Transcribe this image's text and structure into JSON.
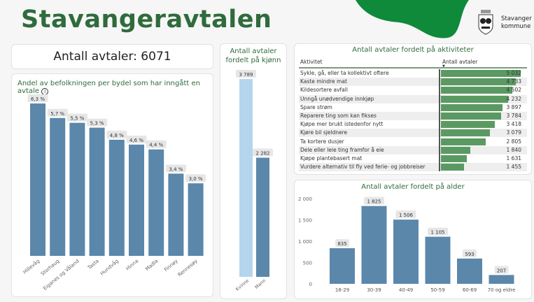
{
  "header": {
    "title": "Stavangeravtalen",
    "logo_text": [
      "Stavanger",
      "kommune"
    ]
  },
  "colors": {
    "brand_green": "#0e8a3a",
    "title_green": "#2f6b3c",
    "bar_blue": "#5b87ab",
    "bar_light_blue": "#b3d6ee",
    "bar_green": "#5a9a62"
  },
  "total": {
    "label": "Antall avtaler: 6071"
  },
  "chart_data": [
    {
      "type": "bar",
      "title": "Andel av befolkningen per bydel som har inngått en avtale",
      "categories": [
        "Hillevåg",
        "Storhaug",
        "Eiganes og Våland",
        "Tasta",
        "Hundvåg",
        "Hinna",
        "Madla",
        "Finnøy",
        "Rennesøy"
      ],
      "values": [
        6.3,
        5.7,
        5.5,
        5.3,
        4.8,
        4.6,
        4.4,
        3.4,
        3.0
      ],
      "data_labels": [
        "6,3 %",
        "5,7 %",
        "5,5 %",
        "5,3 %",
        "4,8 %",
        "4,6 %",
        "4,4 %",
        "3,4 %",
        "3,0 %"
      ]
    },
    {
      "type": "bar",
      "title": "Antall avtaler fordelt på kjønn",
      "categories": [
        "Kvinne",
        "Mann"
      ],
      "values": [
        3789,
        2282
      ],
      "data_labels": [
        "3 789",
        "2 282"
      ]
    },
    {
      "type": "table",
      "title": "Antall avtaler fordelt på aktiviteter",
      "columns": [
        "Aktivitet",
        "Antall avtaler"
      ],
      "rows": [
        [
          "Sykle, gå, eller ta kollektivt oftere",
          5032,
          "5 032"
        ],
        [
          "Kaste mindre mat",
          4733,
          "4 733"
        ],
        [
          "Kildesortere avfall",
          4502,
          "4 502"
        ],
        [
          "Unngå unødvendige innkjøp",
          4232,
          "4 232"
        ],
        [
          "Spare strøm",
          3897,
          "3 897"
        ],
        [
          "Reparere ting som kan fikses",
          3784,
          "3 784"
        ],
        [
          "Kjøpe mer brukt istedenfor nytt",
          3418,
          "3 418"
        ],
        [
          "Kjøre bil sjeldnere",
          3079,
          "3 079"
        ],
        [
          "Ta kortere dusjer",
          2805,
          "2 805"
        ],
        [
          "Dele eller leie ting framfor å eie",
          1840,
          "1 840"
        ],
        [
          "Kjøpe plantebasert mat",
          1631,
          "1 631"
        ],
        [
          "Vurdere alternativ til fly ved ferie- og jobbreiser",
          1455,
          "1 455"
        ]
      ]
    },
    {
      "type": "bar",
      "title": "Antall avtaler fordelt på alder",
      "categories": [
        "18-29",
        "30-39",
        "40-49",
        "50-59",
        "60-69",
        "70 og eldre"
      ],
      "values": [
        835,
        1825,
        1506,
        1105,
        593,
        207
      ],
      "data_labels": [
        "835",
        "1 825",
        "1 506",
        "1 105",
        "593",
        "207"
      ],
      "ylim": [
        0,
        2000
      ],
      "yticks": [
        0,
        500,
        1000,
        1500,
        2000
      ],
      "ytick_labels": [
        "0",
        "500",
        "1 000",
        "1 500",
        "2 000"
      ]
    }
  ]
}
